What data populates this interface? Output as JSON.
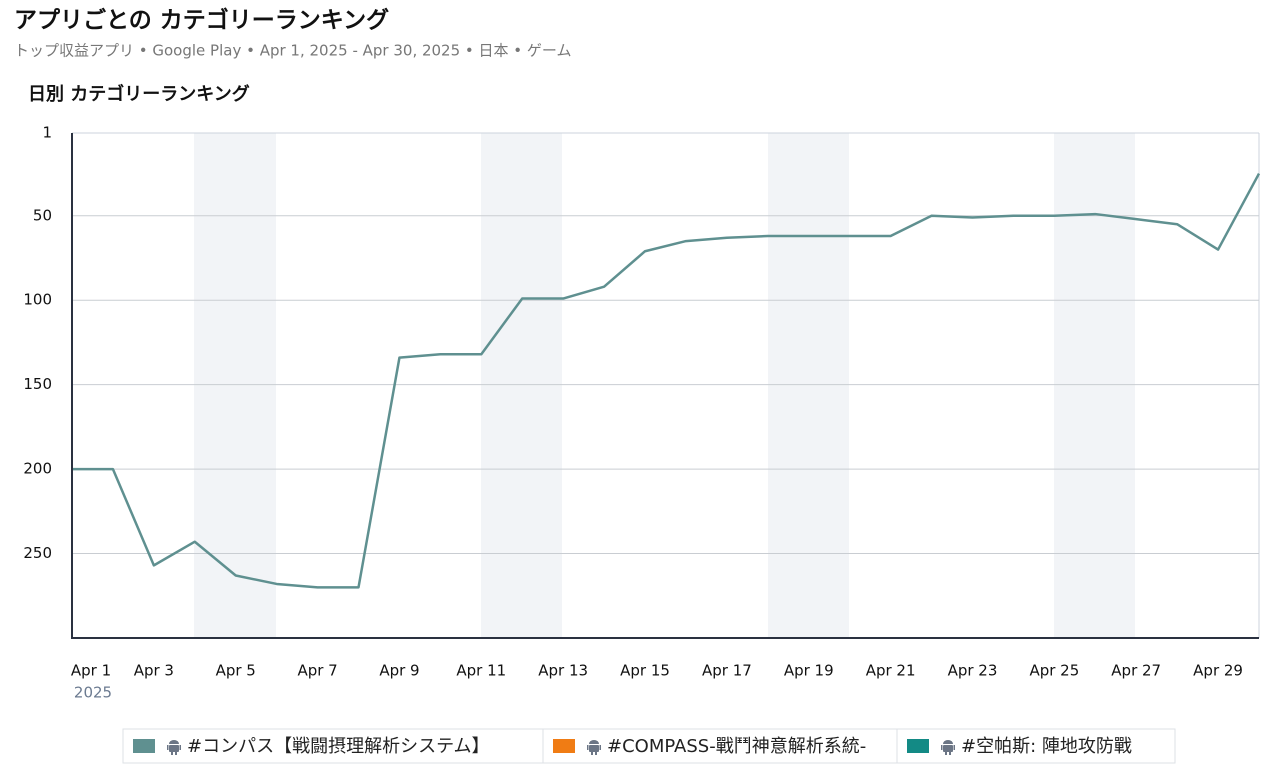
{
  "chart_data": {
    "type": "line",
    "title": "アプリごとの カテゴリーランキング",
    "subtitle": "トップ収益アプリ • Google Play • Apr 1, 2025 - Apr 30, 2025 • 日本 • ゲーム",
    "chart_title": "日別 カテゴリーランキング",
    "categories": [
      "Apr 1",
      null,
      "Apr 3",
      null,
      "Apr 5",
      null,
      "Apr 7",
      null,
      "Apr 9",
      null,
      "Apr 11",
      null,
      "Apr 13",
      null,
      "Apr 15",
      null,
      "Apr 17",
      null,
      "Apr 19",
      null,
      "Apr 21",
      null,
      "Apr 23",
      null,
      "Apr 25",
      null,
      "Apr 27",
      null,
      "Apr 29",
      null
    ],
    "x_year_label": "2025",
    "ylim": [
      1,
      300
    ],
    "y_inverted": true,
    "yticks": [
      1,
      50,
      100,
      150,
      200,
      250
    ],
    "grid": true,
    "series": [
      {
        "name": "#コンパス【戦闘摂理解析システム】",
        "color": "#5f9090",
        "values": [
          200,
          200,
          257,
          243,
          263,
          268,
          270,
          270,
          134,
          132,
          132,
          99,
          99,
          92,
          71,
          65,
          63,
          62,
          62,
          62,
          62,
          50,
          51,
          50,
          50,
          49,
          52,
          55,
          70,
          25
        ]
      },
      {
        "name": "#COMPASS-戰鬥神意解析系統-",
        "color": "#f07c14",
        "values": [
          null,
          null,
          null,
          null,
          null,
          null,
          null,
          null,
          null,
          null,
          null,
          null,
          null,
          null,
          null,
          null,
          null,
          null,
          null,
          null,
          null,
          null,
          null,
          null,
          null,
          null,
          null,
          null,
          null,
          null
        ]
      },
      {
        "name": "#空帕斯: 陣地攻防戰",
        "color": "#138a85",
        "values": [
          null,
          null,
          null,
          null,
          null,
          null,
          null,
          null,
          null,
          null,
          null,
          null,
          null,
          null,
          null,
          null,
          null,
          null,
          null,
          null,
          null,
          null,
          null,
          null,
          null,
          null,
          null,
          null,
          null,
          null
        ]
      }
    ],
    "legend": "bottom"
  }
}
